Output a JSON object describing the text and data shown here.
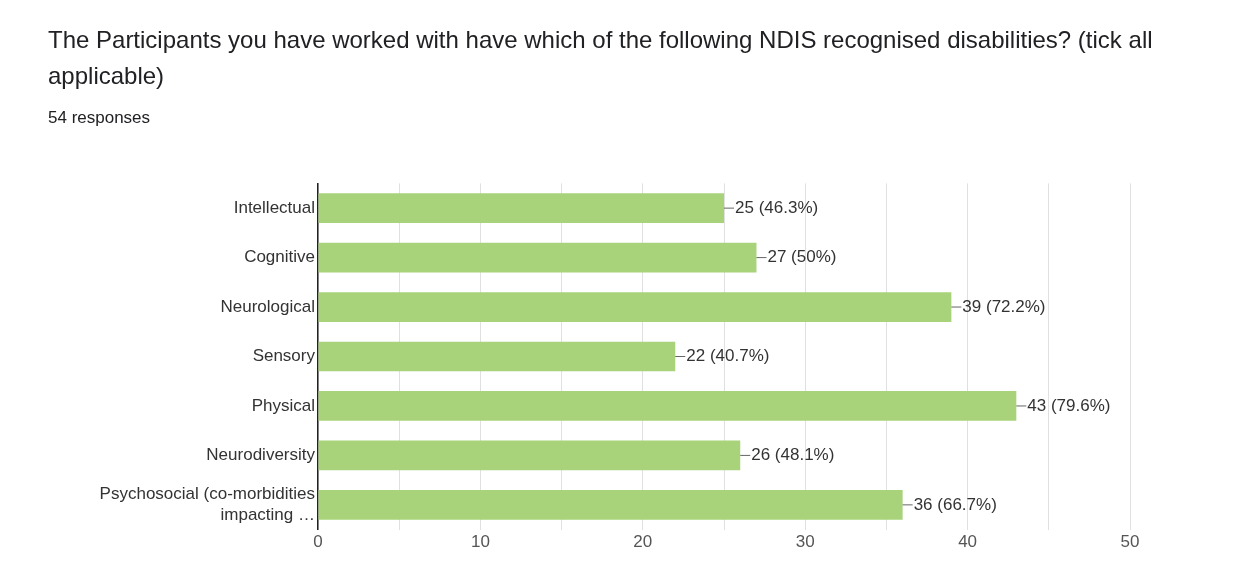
{
  "chart_data": {
    "type": "bar",
    "orientation": "horizontal",
    "title": "The Participants you have worked with have which of the following NDIS recognised disabilities? (tick all applicable)",
    "subtitle": "54 responses",
    "categories": [
      "Intellectual",
      "Cognitive",
      "Neurological",
      "Sensory",
      "Physical",
      "Neurodiversity",
      "Psychosocial (co-morbidities impacting …"
    ],
    "values": [
      25,
      27,
      39,
      22,
      43,
      26,
      36
    ],
    "color": "#a8d37b",
    "value_labels": [
      "25 (46.3%)",
      "27 (50%)",
      "39 (72.2%)",
      "22 (40.7%)",
      "43 (79.6%)",
      "26 (48.1%)",
      "36 (66.7%)"
    ],
    "xlim": [
      0,
      50
    ],
    "xticks": [
      0,
      {
        "value": 5,
        "label": null
      },
      10,
      {
        "value": 15,
        "label": null
      },
      20,
      {
        "value": 25,
        "label": null
      },
      30,
      {
        "value": 35,
        "label": null
      },
      40,
      {
        "value": 45,
        "label": null
      },
      50
    ],
    "grid": "x"
  }
}
